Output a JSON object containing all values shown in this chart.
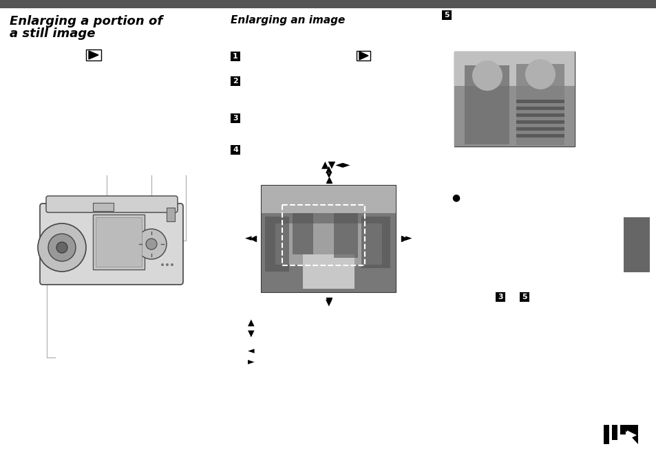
{
  "bg_color": "#ffffff",
  "header_bar_color": "#555555",
  "title_left": "Enlarging a portion of\na still image",
  "title_right": "Enlarging an image",
  "num_box_color": "#000000",
  "num_box_text_color": "#ffffff",
  "sidebar_color": "#666666",
  "arrow_color": "#000000"
}
